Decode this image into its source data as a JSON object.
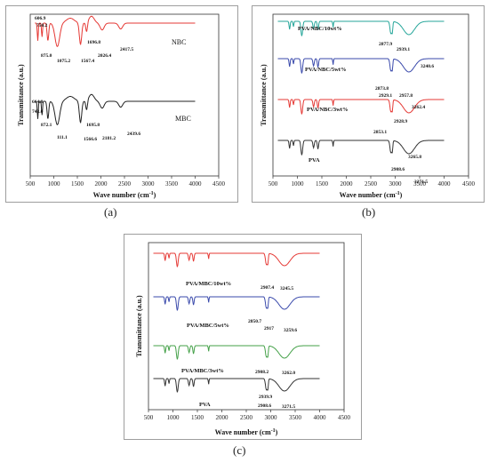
{
  "panels": [
    {
      "id": "a",
      "caption": "(a)",
      "xlabel": "Wave number (cm",
      "xlabel_sup": "-1",
      "xlabel_end": ")",
      "ylabel": "Transmittance (a.u.)",
      "xticks": [
        "500",
        "1000",
        "1500",
        "2000",
        "2500",
        "3000",
        "3500",
        "4000",
        "4500"
      ],
      "series": [
        {
          "name": "NBC",
          "color": "#e53935",
          "label": "NBC",
          "peaks": [
            "606.9",
            "750.2",
            "875.0",
            "1075.2",
            "1567.4",
            "1696.8",
            "2026.4",
            "2417.5"
          ]
        },
        {
          "name": "MBC",
          "color": "#222222",
          "label": "MBC",
          "peaks": [
            "664.8",
            "743.6",
            "872.1",
            "111.1",
            "1566.6",
            "1695.8",
            "2181.2",
            "2439.6"
          ]
        }
      ]
    },
    {
      "id": "b",
      "caption": "(b)",
      "xlabel": "Wave number (cm",
      "xlabel_sup": "-1",
      "xlabel_end": ")",
      "ylabel": "Transmittance (a.u.)",
      "xticks": [
        "500",
        "1000",
        "1500",
        "2000",
        "2500",
        "3000",
        "3500",
        "4000",
        "4500"
      ],
      "series": [
        {
          "name": "PVA/NBC/10wt%",
          "color": "#26a69a",
          "peaks": [
            "2877.9",
            "2939.1",
            "3240.6"
          ]
        },
        {
          "name": "PVA/NBC/5wt%",
          "color": "#3949ab",
          "peaks": [
            "2873.8",
            "2929.1",
            "2957.8"
          ]
        },
        {
          "name": "PVA/NBC/3wt%",
          "color": "#e53935",
          "peaks": [
            "2853.1",
            "2928.9",
            "3262.4"
          ]
        },
        {
          "name": "PVA",
          "color": "#333333",
          "peaks": [
            "2908.6",
            "3265.8",
            "3271.5"
          ]
        }
      ]
    },
    {
      "id": "c",
      "caption": "(c)",
      "xlabel": "Wave number (cm",
      "xlabel_sup": "-1",
      "xlabel_end": ")",
      "ylabel": "Transmittance (a.u.)",
      "xticks": [
        "500",
        "1000",
        "1500",
        "2000",
        "2500",
        "3000",
        "3500",
        "4000",
        "4500"
      ],
      "series": [
        {
          "name": "PVA/MBC/10wt%",
          "color": "#e53935",
          "peaks": [
            "2907.4",
            "3245.5"
          ]
        },
        {
          "name": "PVA/MBC/5wt%",
          "color": "#3949ab",
          "peaks": [
            "2850.7",
            "2917",
            "3259.6"
          ]
        },
        {
          "name": "PVA/MBC/3wt%",
          "color": "#43a047",
          "peaks": [
            "2908.2",
            "3262.0"
          ]
        },
        {
          "name": "PVA",
          "color": "#333333",
          "peaks": [
            "2939.9",
            "2908.6",
            "3271.5"
          ]
        }
      ]
    }
  ],
  "chart_data": [
    {
      "type": "line",
      "xlabel": "Wave number (cm-1)",
      "ylabel": "Transmittance (a.u.)",
      "xlim": [
        500,
        4500
      ],
      "series": [
        {
          "name": "NBC",
          "peaks_cm-1": [
            606.9,
            750.2,
            875.0,
            1075.2,
            1567.4,
            1696.8,
            2026.4,
            2417.5
          ]
        },
        {
          "name": "MBC",
          "peaks_cm-1": [
            664.8,
            743.6,
            872.1,
            111.1,
            1566.6,
            1695.8,
            2181.2,
            2439.6
          ]
        }
      ]
    },
    {
      "type": "line",
      "xlabel": "Wave number (cm-1)",
      "ylabel": "Transmittance (a.u.)",
      "xlim": [
        500,
        4500
      ],
      "series": [
        {
          "name": "PVA/NBC/10wt%",
          "peaks_cm-1": [
            2877.9,
            2939.1,
            3240.6
          ]
        },
        {
          "name": "PVA/NBC/5wt%",
          "peaks_cm-1": [
            2873.8,
            2929.1,
            2957.8
          ]
        },
        {
          "name": "PVA/NBC/3wt%",
          "peaks_cm-1": [
            2853.1,
            2928.9,
            3262.4
          ]
        },
        {
          "name": "PVA",
          "peaks_cm-1": [
            2908.6,
            3265.8,
            3271.5
          ]
        }
      ]
    },
    {
      "type": "line",
      "xlabel": "Wave number (cm-1)",
      "ylabel": "Transmittance (a.u.)",
      "xlim": [
        500,
        4500
      ],
      "series": [
        {
          "name": "PVA/MBC/10wt%",
          "peaks_cm-1": [
            2907.4,
            3245.5
          ]
        },
        {
          "name": "PVA/MBC/5wt%",
          "peaks_cm-1": [
            2850.7,
            2917,
            3259.6
          ]
        },
        {
          "name": "PVA/MBC/3wt%",
          "peaks_cm-1": [
            2908.2,
            3262.0
          ]
        },
        {
          "name": "PVA",
          "peaks_cm-1": [
            2939.9,
            2908.6,
            3271.5
          ]
        }
      ]
    }
  ]
}
